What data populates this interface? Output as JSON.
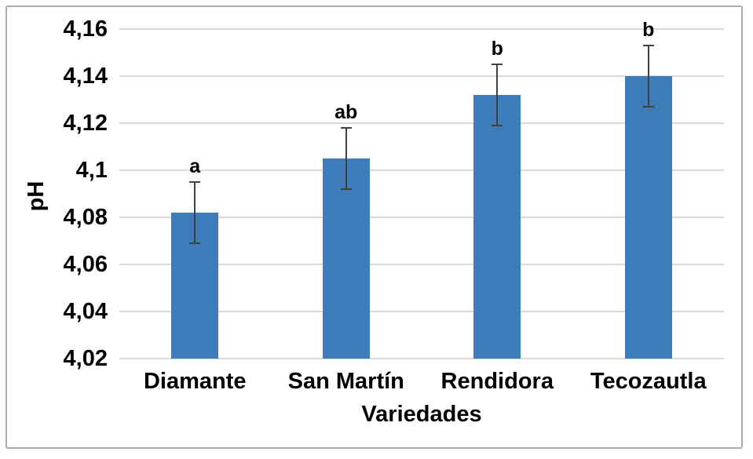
{
  "chart_data": {
    "type": "bar",
    "title": "",
    "xlabel": "Variedades",
    "ylabel": "pH",
    "categories": [
      "Diamante",
      "San Martín",
      "Rendidora",
      "Tecozautla"
    ],
    "values": [
      4.082,
      4.105,
      4.132,
      4.14
    ],
    "error_bars": [
      0.013,
      0.013,
      0.013,
      0.013
    ],
    "significance_letters": [
      "a",
      "ab",
      "b",
      "b"
    ],
    "ylim": [
      4.02,
      4.16
    ],
    "ytick_values": [
      4.16,
      4.14,
      4.12,
      4.1,
      4.08,
      4.06,
      4.04,
      4.02
    ],
    "ytick_labels": [
      "4,16",
      "4,14",
      "4,12",
      "4,1",
      "4,08",
      "4,06",
      "4,04",
      "4,02"
    ],
    "grid": true,
    "legend": false,
    "bar_color": "#3e7cb9",
    "gridline_color": "#d9d9d9",
    "error_bar_color": "#404040",
    "text_color": "#000000",
    "frame_border_color": "#ababab"
  }
}
